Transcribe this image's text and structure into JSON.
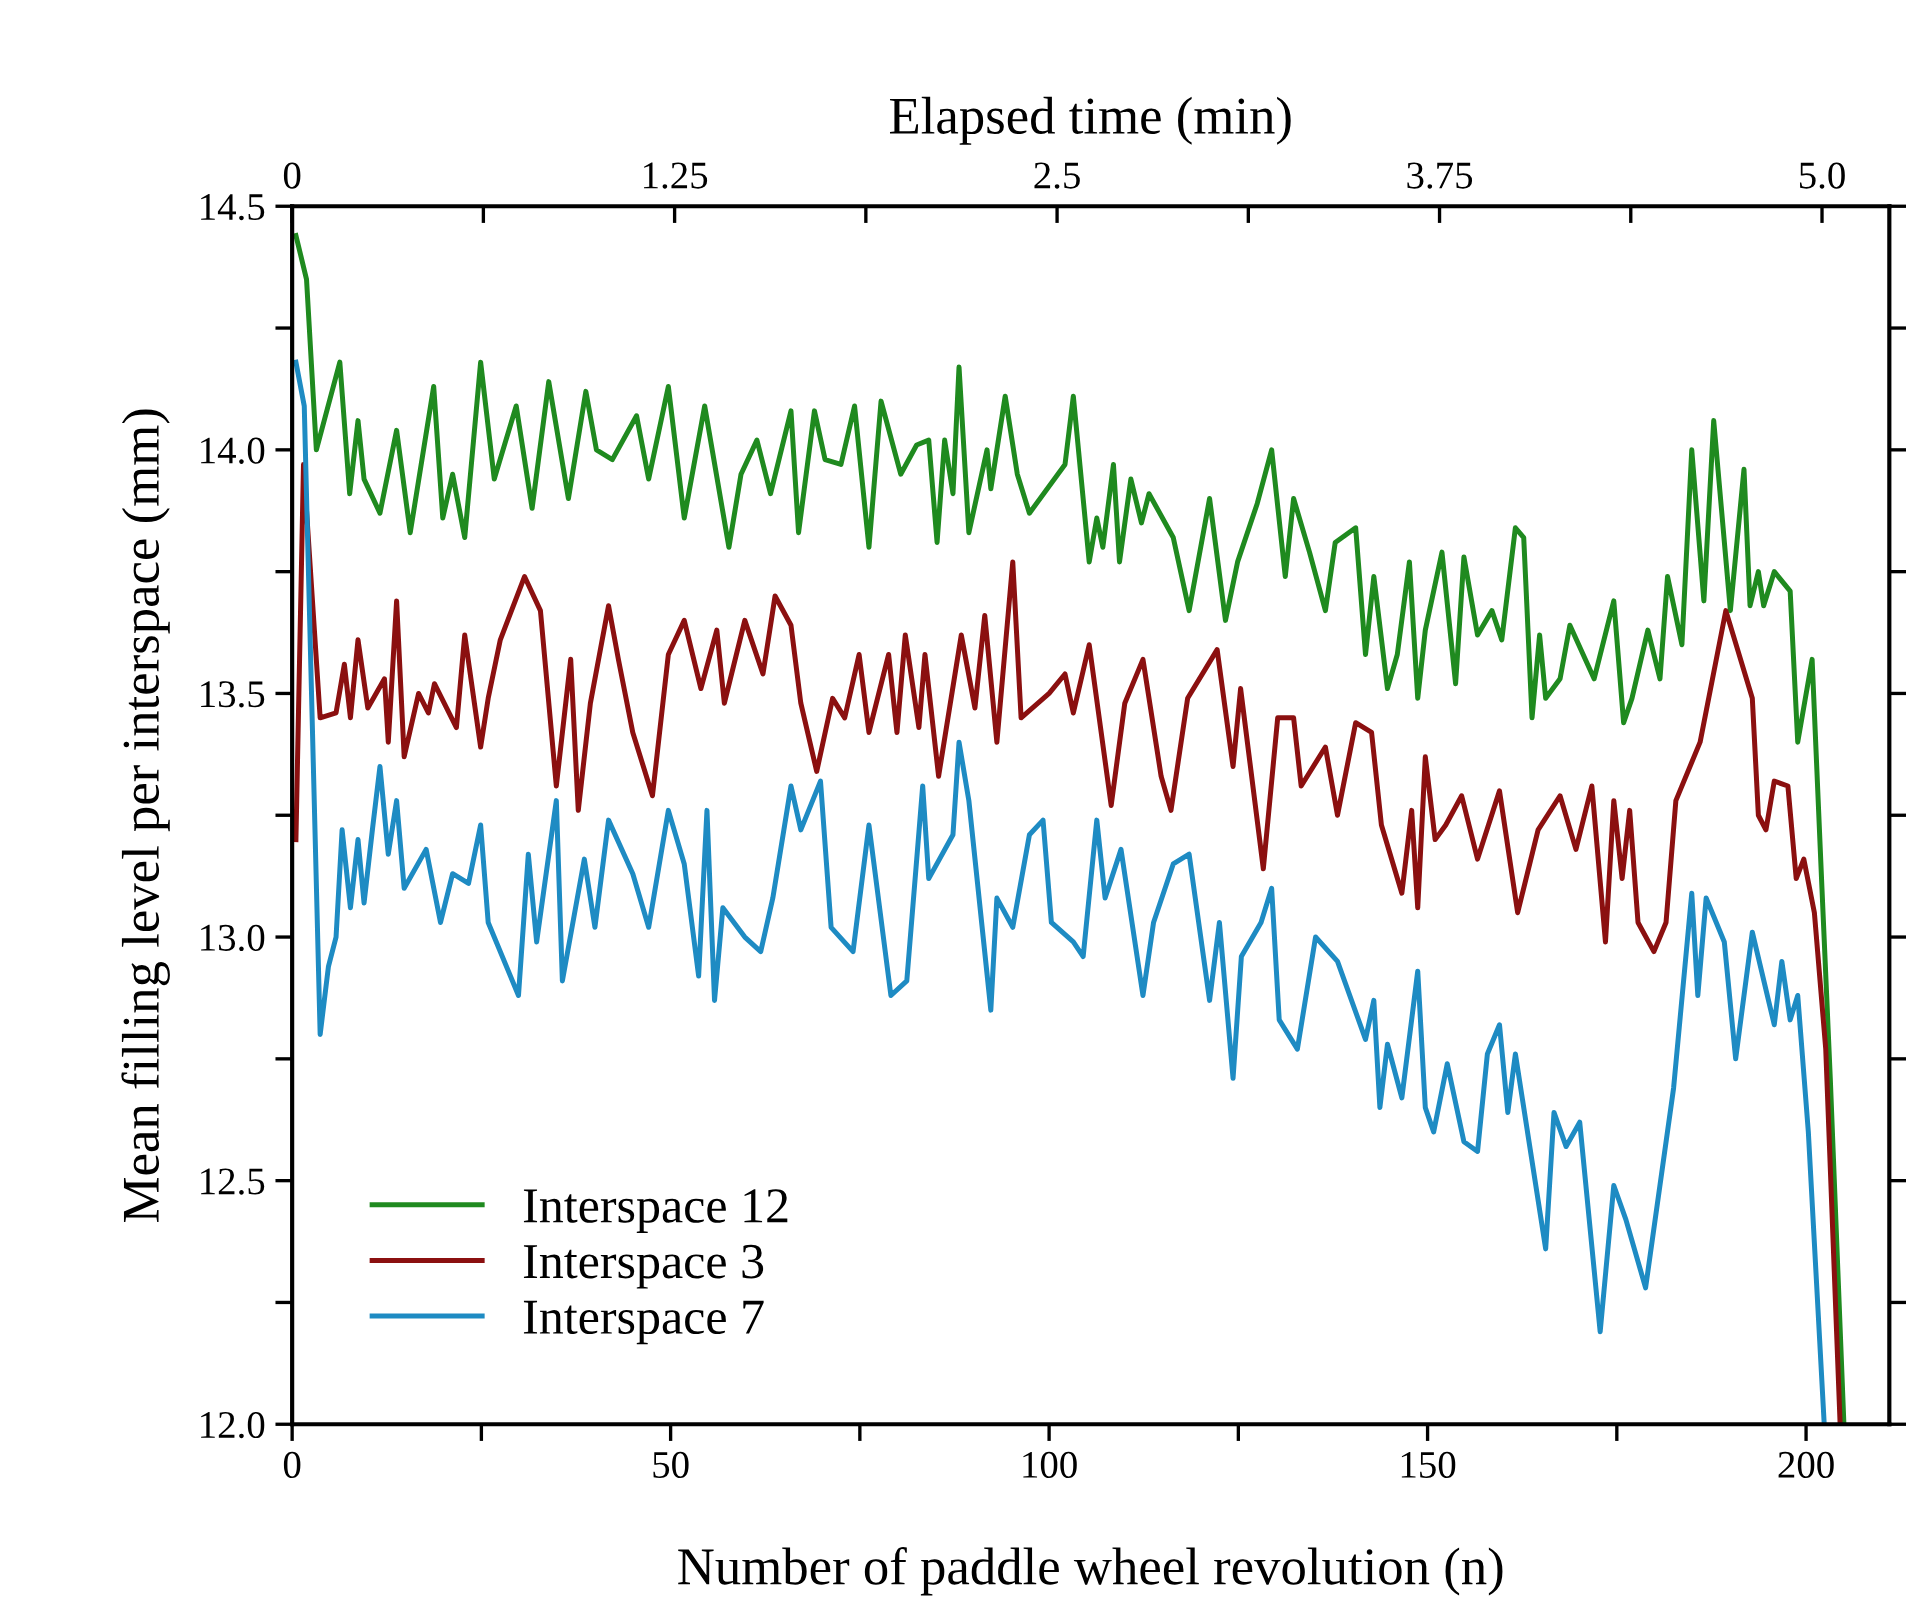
{
  "chart_data": {
    "type": "line",
    "xlabel": "Number of paddle wheel revolution (n)",
    "ylabel": "Mean filling level per interspace (mm)",
    "x2label": "Elapsed time (min)",
    "xlim": [
      0,
      211
    ],
    "xticks": [
      0,
      {
        "value": 25,
        "label": null
      },
      50,
      {
        "value": 75,
        "label": null
      },
      100,
      {
        "value": 125,
        "label": null
      },
      150,
      {
        "value": 175,
        "label": null
      },
      200
    ],
    "ylim": [
      12.0,
      14.5
    ],
    "yticks": [
      {
        "value": 12,
        "label": "12.0"
      },
      {
        "value": 12.25,
        "label": null
      },
      12.5,
      {
        "value": 12.75,
        "label": null
      },
      {
        "value": 13,
        "label": "13.0"
      },
      {
        "value": 13.25,
        "label": null
      },
      13.5,
      {
        "value": 13.75,
        "label": null
      },
      {
        "value": 14,
        "label": "14.0"
      },
      {
        "value": 14.25,
        "label": null
      },
      14.5
    ],
    "x2lim": [
      0,
      5.22
    ],
    "x2ticks": [
      0,
      {
        "value": 0.625,
        "label": null
      },
      1.25,
      {
        "value": 1.875,
        "label": null
      },
      2.5,
      {
        "value": 3.125,
        "label": null
      },
      3.75,
      {
        "value": 4.375,
        "label": null
      },
      {
        "value": 5,
        "label": "5.0"
      }
    ],
    "grid": false,
    "legend": "bottom left",
    "marker": "none",
    "line_style": "solid",
    "series": [
      {
        "name": "Interspace 12",
        "color": "#1f8a1f",
        "x": [
          0.5,
          1.9,
          3.2,
          6.3,
          7.6,
          8.7,
          9.5,
          11.6,
          13.8,
          15.6,
          18.7,
          19.9,
          21.2,
          22.8,
          24.9,
          26.7,
          29.6,
          31.7,
          33.9,
          36.5,
          38.8,
          40.2,
          42.3,
          45.5,
          47.1,
          49.7,
          51.8,
          54.5,
          57.7,
          59.3,
          61.4,
          63.2,
          65.9,
          66.9,
          69,
          70.4,
          72.5,
          74.3,
          76.2,
          77.8,
          80.4,
          82.5,
          84.1,
          85.2,
          86.2,
          87.3,
          88.1,
          89.4,
          91.8,
          92.3,
          94.2,
          95.8,
          97.4,
          102.1,
          103.2,
          105.3,
          106.3,
          107.1,
          108.5,
          109.3,
          110.8,
          112.2,
          113.2,
          116.4,
          118.5,
          121.2,
          123.3,
          124.9,
          127.5,
          129.4,
          131.2,
          132.3,
          134.4,
          136.5,
          137.8,
          140.5,
          141.8,
          142.9,
          144.7,
          146,
          147.6,
          148.7,
          149.7,
          151.9,
          153.7,
          154.8,
          156.6,
          158.5,
          159.8,
          161.6,
          162.7,
          163.8,
          164.8,
          165.6,
          167.5,
          168.8,
          172,
          174.6,
          175.9,
          177,
          179.1,
          180.7,
          181.7,
          183.6,
          184.9,
          186.5,
          187.8,
          190,
          191.8,
          192.6,
          193.7,
          194.4,
          195.8,
          197.9,
          198.9,
          200.8,
          202.1,
          203.2,
          205
        ],
        "values": [
          14.44,
          14.35,
          14.0,
          14.18,
          13.91,
          14.06,
          13.94,
          13.87,
          14.04,
          13.83,
          14.13,
          13.86,
          13.95,
          13.82,
          14.18,
          13.94,
          14.09,
          13.88,
          14.14,
          13.9,
          14.12,
          14.0,
          13.98,
          14.07,
          13.94,
          14.13,
          13.86,
          14.09,
          13.8,
          13.95,
          14.02,
          13.91,
          14.08,
          13.83,
          14.08,
          13.98,
          13.97,
          14.09,
          13.8,
          14.1,
          13.95,
          14.01,
          14.02,
          13.81,
          14.02,
          13.91,
          14.17,
          13.83,
          14.0,
          13.92,
          14.11,
          13.95,
          13.87,
          13.97,
          14.11,
          13.77,
          13.86,
          13.8,
          13.97,
          13.77,
          13.94,
          13.85,
          13.91,
          13.82,
          13.67,
          13.9,
          13.65,
          13.77,
          13.89,
          14.0,
          13.74,
          13.9,
          13.79,
          13.67,
          13.81,
          13.84,
          13.58,
          13.74,
          13.51,
          13.58,
          13.77,
          13.49,
          13.63,
          13.79,
          13.52,
          13.78,
          13.62,
          13.67,
          13.61,
          13.84,
          13.82,
          13.45,
          13.62,
          13.49,
          13.53,
          13.64,
          13.53,
          13.69,
          13.44,
          13.49,
          13.63,
          13.53,
          13.74,
          13.6,
          14.0,
          13.69,
          14.06,
          13.67,
          13.96,
          13.68,
          13.75,
          13.68,
          13.75,
          13.71,
          13.4,
          13.57,
          13.1,
          12.71,
          12.0
        ]
      },
      {
        "name": "Interspace 3",
        "color": "#8b1010",
        "x": [
          0.5,
          1.5,
          3.7,
          5.8,
          6.9,
          7.7,
          8.7,
          10,
          12.2,
          12.7,
          13.8,
          14.8,
          16.7,
          18,
          18.8,
          21.7,
          22.8,
          24.9,
          25.9,
          27.5,
          30.7,
          32.8,
          34.9,
          36.8,
          37.8,
          39.4,
          41.8,
          43.1,
          45,
          47.6,
          49.7,
          51.8,
          54,
          56.1,
          57.1,
          59.8,
          62.2,
          63.8,
          65.9,
          67.2,
          69.3,
          71.4,
          73,
          74.9,
          76.2,
          78.8,
          79.9,
          81,
          82.8,
          83.6,
          85.4,
          88.4,
          90.2,
          91.5,
          93.1,
          95.2,
          96.3,
          100,
          102.1,
          103.2,
          105.3,
          108.2,
          110,
          112.4,
          114.8,
          116.1,
          118.3,
          122.2,
          124.3,
          125.3,
          128.3,
          130.2,
          132.3,
          133.3,
          136.5,
          138.1,
          140.5,
          142.6,
          143.9,
          146.6,
          147.9,
          148.7,
          149.7,
          151,
          152.4,
          154.5,
          156.6,
          159.5,
          161.9,
          164.6,
          167.5,
          169.6,
          171.7,
          173.5,
          174.6,
          175.7,
          176.7,
          177.8,
          179.9,
          181.5,
          182.8,
          186,
          189.4,
          192.9,
          193.7,
          194.7,
          195.8,
          197.6,
          198.7,
          199.7,
          201.1,
          202.6,
          204.5
        ],
        "values": [
          13.2,
          13.97,
          13.45,
          13.46,
          13.56,
          13.45,
          13.61,
          13.47,
          13.53,
          13.4,
          13.69,
          13.37,
          13.5,
          13.46,
          13.52,
          13.43,
          13.62,
          13.39,
          13.49,
          13.61,
          13.74,
          13.67,
          13.31,
          13.57,
          13.26,
          13.48,
          13.68,
          13.57,
          13.42,
          13.29,
          13.58,
          13.65,
          13.51,
          13.63,
          13.48,
          13.65,
          13.54,
          13.7,
          13.64,
          13.48,
          13.34,
          13.49,
          13.45,
          13.58,
          13.42,
          13.58,
          13.42,
          13.62,
          13.43,
          13.58,
          13.33,
          13.62,
          13.47,
          13.66,
          13.4,
          13.77,
          13.45,
          13.5,
          13.54,
          13.46,
          13.6,
          13.27,
          13.48,
          13.57,
          13.33,
          13.26,
          13.49,
          13.59,
          13.35,
          13.51,
          13.14,
          13.45,
          13.45,
          13.31,
          13.39,
          13.25,
          13.44,
          13.42,
          13.23,
          13.09,
          13.26,
          13.06,
          13.37,
          13.2,
          13.23,
          13.29,
          13.16,
          13.3,
          13.05,
          13.22,
          13.29,
          13.18,
          13.31,
          12.99,
          13.28,
          13.12,
          13.26,
          13.03,
          12.97,
          13.03,
          13.28,
          13.4,
          13.67,
          13.49,
          13.25,
          13.22,
          13.32,
          13.31,
          13.12,
          13.16,
          13.05,
          12.77,
          12.0
        ]
      },
      {
        "name": "Interspace 7",
        "color": "#1e8bc3",
        "x": [
          0.5,
          1.6,
          3.7,
          4.8,
          5.8,
          6.6,
          7.7,
          8.7,
          9.5,
          10.6,
          11.6,
          12.7,
          13.8,
          14.8,
          17.7,
          19.6,
          21.2,
          23.3,
          24.9,
          25.9,
          29.9,
          31.2,
          32.3,
          34.9,
          35.7,
          38.6,
          40,
          41.8,
          45,
          47.1,
          49.7,
          51.8,
          53.7,
          54.8,
          55.8,
          56.9,
          59.8,
          61.9,
          63.5,
          65.9,
          67.2,
          69.8,
          71.2,
          74.1,
          76.2,
          79.1,
          81.2,
          83.3,
          84.1,
          87.3,
          88.1,
          89.4,
          92.3,
          93.1,
          95.2,
          97.4,
          99.2,
          100.3,
          103.2,
          104.5,
          106.3,
          107.4,
          109.5,
          112.4,
          113.8,
          116.4,
          118.5,
          121.2,
          122.5,
          124.3,
          125.4,
          128,
          129.4,
          130.4,
          132.8,
          135.2,
          138.1,
          141.8,
          142.9,
          143.7,
          144.7,
          146.6,
          148.7,
          149.7,
          150.8,
          152.6,
          154.8,
          156.6,
          157.9,
          159.5,
          160.6,
          161.6,
          163,
          165.6,
          166.7,
          168.3,
          170.1,
          172.8,
          174.6,
          176.2,
          178.8,
          182.5,
          184.9,
          185.7,
          186.8,
          189.2,
          190.7,
          192.9,
          195.8,
          196.8,
          197.9,
          198.9,
          200.3,
          202.4
        ],
        "values": [
          14.18,
          14.09,
          12.8,
          12.94,
          13.0,
          13.22,
          13.06,
          13.2,
          13.07,
          13.22,
          13.35,
          13.17,
          13.28,
          13.1,
          13.18,
          13.03,
          13.13,
          13.11,
          13.23,
          13.03,
          12.88,
          13.17,
          12.99,
          13.28,
          12.91,
          13.16,
          13.02,
          13.24,
          13.13,
          13.02,
          13.26,
          13.15,
          12.92,
          13.26,
          12.87,
          13.06,
          13.0,
          12.97,
          13.08,
          13.31,
          13.22,
          13.32,
          13.02,
          12.97,
          13.23,
          12.88,
          12.91,
          13.31,
          13.12,
          13.21,
          13.4,
          13.28,
          12.85,
          13.08,
          13.02,
          13.21,
          13.24,
          13.03,
          12.99,
          12.96,
          13.24,
          13.08,
          13.18,
          12.88,
          13.03,
          13.15,
          13.17,
          12.87,
          13.03,
          12.71,
          12.96,
          13.03,
          13.1,
          12.83,
          12.77,
          13.0,
          12.95,
          12.79,
          12.87,
          12.65,
          12.78,
          12.67,
          12.93,
          12.65,
          12.6,
          12.74,
          12.58,
          12.56,
          12.76,
          12.82,
          12.64,
          12.76,
          12.62,
          12.36,
          12.64,
          12.57,
          12.62,
          12.19,
          12.49,
          12.42,
          12.28,
          12.69,
          13.09,
          12.88,
          13.08,
          12.99,
          12.75,
          13.01,
          12.82,
          12.95,
          12.83,
          12.88,
          12.6,
          12.0
        ]
      }
    ]
  }
}
